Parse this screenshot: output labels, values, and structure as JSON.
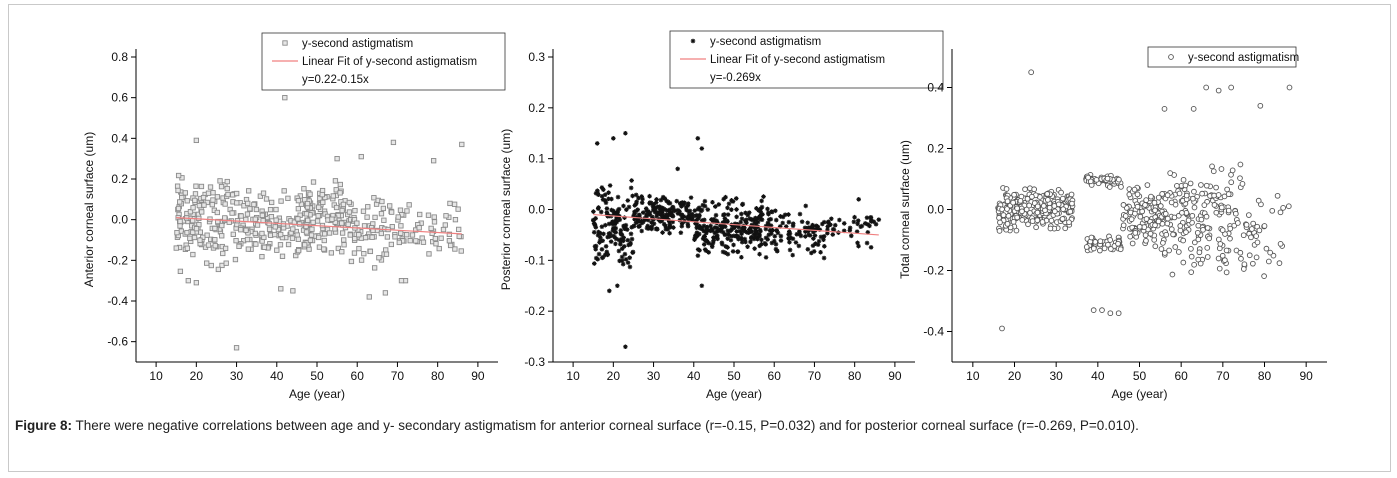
{
  "chart_data": [
    {
      "type": "scatter",
      "xlabel": "Age (year)",
      "ylabel": "Anterior corneal surface (um)",
      "xlim": [
        5,
        95
      ],
      "ylim": [
        -0.7,
        0.8
      ],
      "xticks": [
        10,
        20,
        30,
        40,
        50,
        60,
        70,
        80,
        90
      ],
      "yticks": [
        -0.6,
        -0.4,
        -0.2,
        0.0,
        0.2,
        0.4,
        0.6,
        0.8
      ],
      "ytick_labels": [
        "-0.6",
        "-0.4",
        "-0.2",
        "0.0",
        "0.2",
        "0.4",
        "0.6",
        "0.8"
      ],
      "legend": [
        "y-second astigmatism",
        "Linear Fit of y-second astigmatism",
        "y=0.22-0.15x"
      ],
      "legend_position": "top-center",
      "marker": "square",
      "marker_color": "#8a8a8a",
      "fit_color": "#f08080",
      "fit_line": {
        "x": [
          15,
          86
        ],
        "y": [
          0.01,
          -0.07
        ]
      },
      "clusters": [
        {
          "x": [
            15,
            30
          ],
          "y": [
            -0.27,
            0.25
          ],
          "n": 150,
          "seed": 11
        },
        {
          "x": [
            30,
            45
          ],
          "y": [
            -0.22,
            0.15
          ],
          "n": 110,
          "seed": 12
        },
        {
          "x": [
            45,
            57
          ],
          "y": [
            -0.2,
            0.2
          ],
          "n": 140,
          "seed": 13
        },
        {
          "x": [
            57,
            73
          ],
          "y": [
            -0.25,
            0.15
          ],
          "n": 90,
          "seed": 14
        },
        {
          "x": [
            73,
            86
          ],
          "y": [
            -0.2,
            0.1
          ],
          "n": 40,
          "seed": 15
        }
      ],
      "points": [
        [
          30,
          -0.63
        ],
        [
          42,
          0.6
        ],
        [
          20,
          0.39
        ],
        [
          86,
          0.37
        ],
        [
          69,
          0.38
        ],
        [
          61,
          0.31
        ],
        [
          55,
          0.3
        ],
        [
          79,
          0.29
        ],
        [
          63,
          -0.38
        ],
        [
          41,
          -0.34
        ],
        [
          44,
          -0.35
        ],
        [
          67,
          -0.36
        ],
        [
          20,
          -0.31
        ],
        [
          18,
          -0.3
        ],
        [
          72,
          -0.3
        ],
        [
          71,
          -0.3
        ]
      ]
    },
    {
      "type": "scatter",
      "xlabel": "Age (year)",
      "ylabel": "Posterior corneal surface (um)",
      "xlim": [
        5,
        95
      ],
      "ylim": [
        -0.3,
        0.3
      ],
      "xticks": [
        10,
        20,
        30,
        40,
        50,
        60,
        70,
        80,
        90
      ],
      "yticks": [
        -0.3,
        -0.2,
        -0.1,
        0.0,
        0.1,
        0.2,
        0.3
      ],
      "ytick_labels": [
        "-0.3",
        "-0.2",
        "-0.1",
        "0.0",
        "0.1",
        "0.2",
        "0.3"
      ],
      "legend": [
        "y-second astigmatism",
        "Linear Fit of y-second astigmatism",
        "y=-0.269x"
      ],
      "legend_position": "top-center",
      "marker": "star",
      "marker_color": "#111111",
      "fit_color": "#f08080",
      "fit_line": {
        "x": [
          15,
          86
        ],
        "y": [
          -0.01,
          -0.05
        ]
      },
      "clusters": [
        {
          "x": [
            15,
            25
          ],
          "y": [
            -0.13,
            0.06
          ],
          "n": 140,
          "seed": 21
        },
        {
          "x": [
            25,
            40
          ],
          "y": [
            -0.05,
            0.03
          ],
          "n": 170,
          "seed": 22
        },
        {
          "x": [
            40,
            58
          ],
          "y": [
            -0.1,
            0.03
          ],
          "n": 240,
          "seed": 23
        },
        {
          "x": [
            58,
            73
          ],
          "y": [
            -0.1,
            0.01
          ],
          "n": 100,
          "seed": 24
        },
        {
          "x": [
            73,
            86
          ],
          "y": [
            -0.08,
            0.0
          ],
          "n": 40,
          "seed": 25
        }
      ],
      "points": [
        [
          23,
          -0.27
        ],
        [
          23,
          0.15
        ],
        [
          20,
          0.14
        ],
        [
          41,
          0.14
        ],
        [
          42,
          0.12
        ],
        [
          16,
          0.13
        ],
        [
          36,
          0.08
        ],
        [
          42,
          -0.15
        ],
        [
          19,
          -0.16
        ],
        [
          21,
          -0.15
        ],
        [
          81,
          0.02
        ],
        [
          86,
          -0.02
        ]
      ]
    },
    {
      "type": "scatter",
      "xlabel": "Age (year)",
      "ylabel": "Total corneal surface (um)",
      "xlim": [
        5,
        95
      ],
      "ylim": [
        -0.5,
        0.5
      ],
      "xticks": [
        10,
        20,
        30,
        40,
        50,
        60,
        70,
        80,
        90
      ],
      "yticks": [
        -0.4,
        -0.2,
        0.0,
        0.2,
        0.4
      ],
      "ytick_labels": [
        "-0.4",
        "-0.2",
        "0.0",
        "0.2",
        "0.4"
      ],
      "legend": [
        "y-second astigmatism"
      ],
      "legend_position": "top-right",
      "marker": "circle-open",
      "marker_color": "#555555",
      "clusters": [
        {
          "x": [
            16,
            34
          ],
          "y": [
            -0.08,
            0.08
          ],
          "n": 260,
          "seed": 31
        },
        {
          "x": [
            37,
            46
          ],
          "y": [
            0.07,
            0.12
          ],
          "n": 50,
          "seed": 32
        },
        {
          "x": [
            37,
            46
          ],
          "y": [
            -0.14,
            -0.08
          ],
          "n": 50,
          "seed": 33
        },
        {
          "x": [
            46,
            56
          ],
          "y": [
            -0.14,
            0.1
          ],
          "n": 130,
          "seed": 34
        },
        {
          "x": [
            56,
            75
          ],
          "y": [
            -0.25,
            0.18
          ],
          "n": 180,
          "seed": 35
        },
        {
          "x": [
            75,
            86
          ],
          "y": [
            -0.24,
            0.1
          ],
          "n": 40,
          "seed": 36
        }
      ],
      "points": [
        [
          24,
          0.45
        ],
        [
          17,
          -0.39
        ],
        [
          39,
          -0.33
        ],
        [
          41,
          -0.33
        ],
        [
          43,
          -0.34
        ],
        [
          45,
          -0.34
        ],
        [
          66,
          0.4
        ],
        [
          69,
          0.39
        ],
        [
          72,
          0.4
        ],
        [
          86,
          0.4
        ],
        [
          79,
          0.34
        ],
        [
          63,
          0.33
        ],
        [
          56,
          0.33
        ]
      ]
    }
  ],
  "caption": {
    "label": "Figure 8:",
    "text": " There were negative correlations between age and y- secondary astigmatism for anterior corneal surface (r=-0.15, P=0.032) and for posterior corneal surface (r=-0.269, P=0.010)."
  }
}
